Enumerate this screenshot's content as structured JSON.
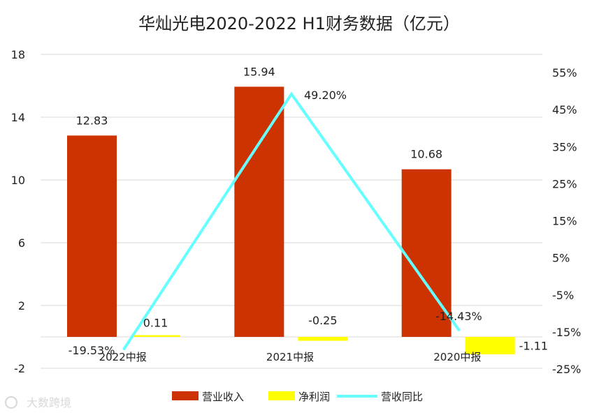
{
  "chart_data": {
    "type": "bar",
    "title": "华灿光电2020-2022 H1财务数据（亿元）",
    "categories": [
      "2022中报",
      "2021中报",
      "2020中报"
    ],
    "series": [
      {
        "name": "营业收入",
        "type": "bar",
        "axis": "left",
        "color": "#cc3300",
        "values": [
          12.83,
          15.94,
          10.68
        ],
        "labels": [
          "12.83",
          "15.94",
          "10.68"
        ]
      },
      {
        "name": "净利润",
        "type": "bar",
        "axis": "left",
        "color": "#ffff00",
        "values": [
          0.11,
          -0.25,
          -1.11
        ],
        "labels": [
          "0.11",
          "-0.25",
          "-1.11"
        ]
      },
      {
        "name": "营收同比",
        "type": "line",
        "axis": "right",
        "color": "#66ffff",
        "values": [
          -19.53,
          49.2,
          -14.43
        ],
        "labels": [
          "-19.53%",
          "49.20%",
          "-14.43%"
        ]
      }
    ],
    "y_left": {
      "ylim": [
        -2,
        18
      ],
      "ticks": [
        -2,
        2,
        6,
        10,
        14,
        18
      ],
      "tick_labels": [
        "-2",
        "2",
        "6",
        "10",
        "14",
        "18"
      ]
    },
    "y_right": {
      "ylim": [
        -25,
        55
      ],
      "ticks": [
        -25,
        -15,
        -5,
        5,
        15,
        25,
        35,
        45,
        55
      ],
      "tick_labels": [
        "-25%",
        "-15%",
        "-5%",
        "5%",
        "15%",
        "25%",
        "35%",
        "45%",
        "55%"
      ]
    },
    "grid": true,
    "legend": "bottom"
  },
  "watermark": "大数跨境"
}
